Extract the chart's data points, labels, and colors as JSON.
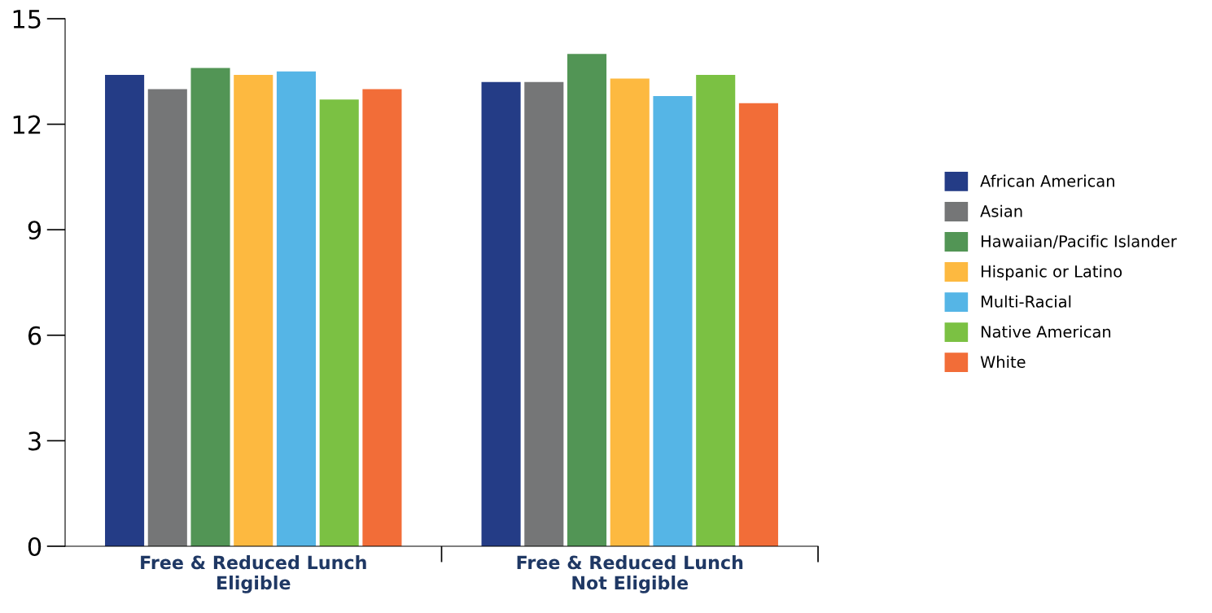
{
  "chart_data": {
    "type": "bar",
    "categories": [
      "Free & Reduced Lunch\nEligible",
      "Free & Reduced Lunch\nNot Eligible"
    ],
    "series": [
      {
        "name": "African American",
        "color": "#243c86",
        "values": [
          13.4,
          13.2
        ]
      },
      {
        "name": "Asian",
        "color": "#757677",
        "values": [
          13.0,
          13.2
        ]
      },
      {
        "name": "Hawaiian/Pacific Islander",
        "color": "#529555",
        "values": [
          13.6,
          14.0
        ]
      },
      {
        "name": "Hispanic or Latino",
        "color": "#fdb940",
        "values": [
          13.4,
          13.3
        ]
      },
      {
        "name": "Multi-Racial",
        "color": "#55b5e6",
        "values": [
          13.5,
          12.8
        ]
      },
      {
        "name": "Native American",
        "color": "#7bc143",
        "values": [
          12.7,
          13.4
        ]
      },
      {
        "name": "White",
        "color": "#f26d38",
        "values": [
          13.0,
          12.6
        ]
      }
    ],
    "ylim": [
      0,
      15
    ],
    "yticks": [
      0,
      3,
      6,
      9,
      12,
      15
    ],
    "grid": false,
    "legend": "right"
  }
}
